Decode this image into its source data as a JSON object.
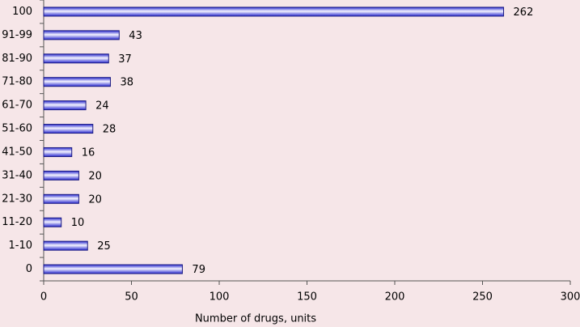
{
  "chart_data": {
    "type": "bar",
    "orientation": "horizontal",
    "x_label": "Number of drugs, units",
    "categories": [
      "100",
      "91-99",
      "81-90",
      "71-80",
      "61-70",
      "51-60",
      "41-50",
      "31-40",
      "21-30",
      "11-20",
      "1-10",
      "0"
    ],
    "values": [
      262,
      43,
      37,
      38,
      24,
      28,
      16,
      20,
      20,
      10,
      25,
      79
    ],
    "color": "#2a2ad0",
    "xlim": [
      0,
      300
    ],
    "xticks": [
      0,
      50,
      100,
      150,
      200,
      250,
      300
    ],
    "grid": false
  }
}
